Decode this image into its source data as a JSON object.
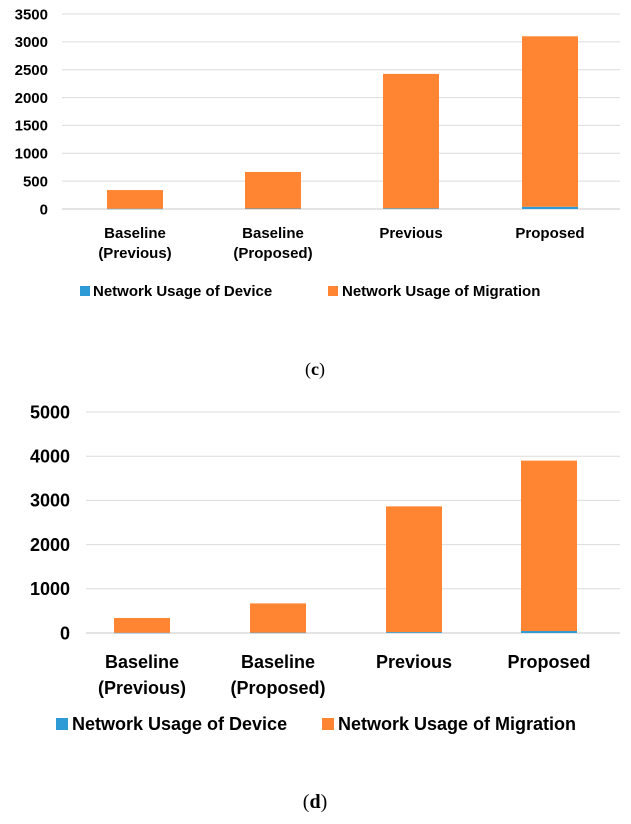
{
  "chart_data": [
    {
      "panel": "c",
      "caption_open": "(",
      "caption_letter": "c",
      "caption_close": ")",
      "type": "bar",
      "stacked": true,
      "categories": [
        [
          "Baseline",
          "(Previous)"
        ],
        [
          "Baseline",
          "(Proposed)"
        ],
        [
          "Previous"
        ],
        [
          "Proposed"
        ]
      ],
      "series": [
        {
          "name": "Network Usage of Device",
          "color": "#2E9BD6",
          "values": [
            5,
            8,
            12,
            40
          ]
        },
        {
          "name": "Network Usage of Migration",
          "color": "#FF8533",
          "values": [
            335,
            657,
            2413,
            3060
          ]
        }
      ],
      "yticks": [
        "0",
        "500",
        "1000",
        "1500",
        "2000",
        "2500",
        "3000",
        "3500"
      ],
      "ylim": [
        0,
        3500
      ],
      "grid": true,
      "legend": "bottom"
    },
    {
      "panel": "d",
      "caption_open": "(",
      "caption_letter": "d",
      "caption_close": ")",
      "type": "bar",
      "stacked": true,
      "categories": [
        [
          "Baseline",
          "(Previous)"
        ],
        [
          "Baseline",
          "(Proposed)"
        ],
        [
          "Previous"
        ],
        [
          "Proposed"
        ]
      ],
      "series": [
        {
          "name": "Network Usage of Device",
          "color": "#2E9BD6",
          "values": [
            5,
            8,
            20,
            45
          ]
        },
        {
          "name": "Network Usage of Migration",
          "color": "#FF8533",
          "values": [
            335,
            662,
            2845,
            3855
          ]
        }
      ],
      "yticks": [
        "0",
        "1000",
        "2000",
        "3000",
        "4000",
        "5000"
      ],
      "ylim": [
        0,
        5000
      ],
      "grid": true,
      "legend": "bottom"
    }
  ]
}
